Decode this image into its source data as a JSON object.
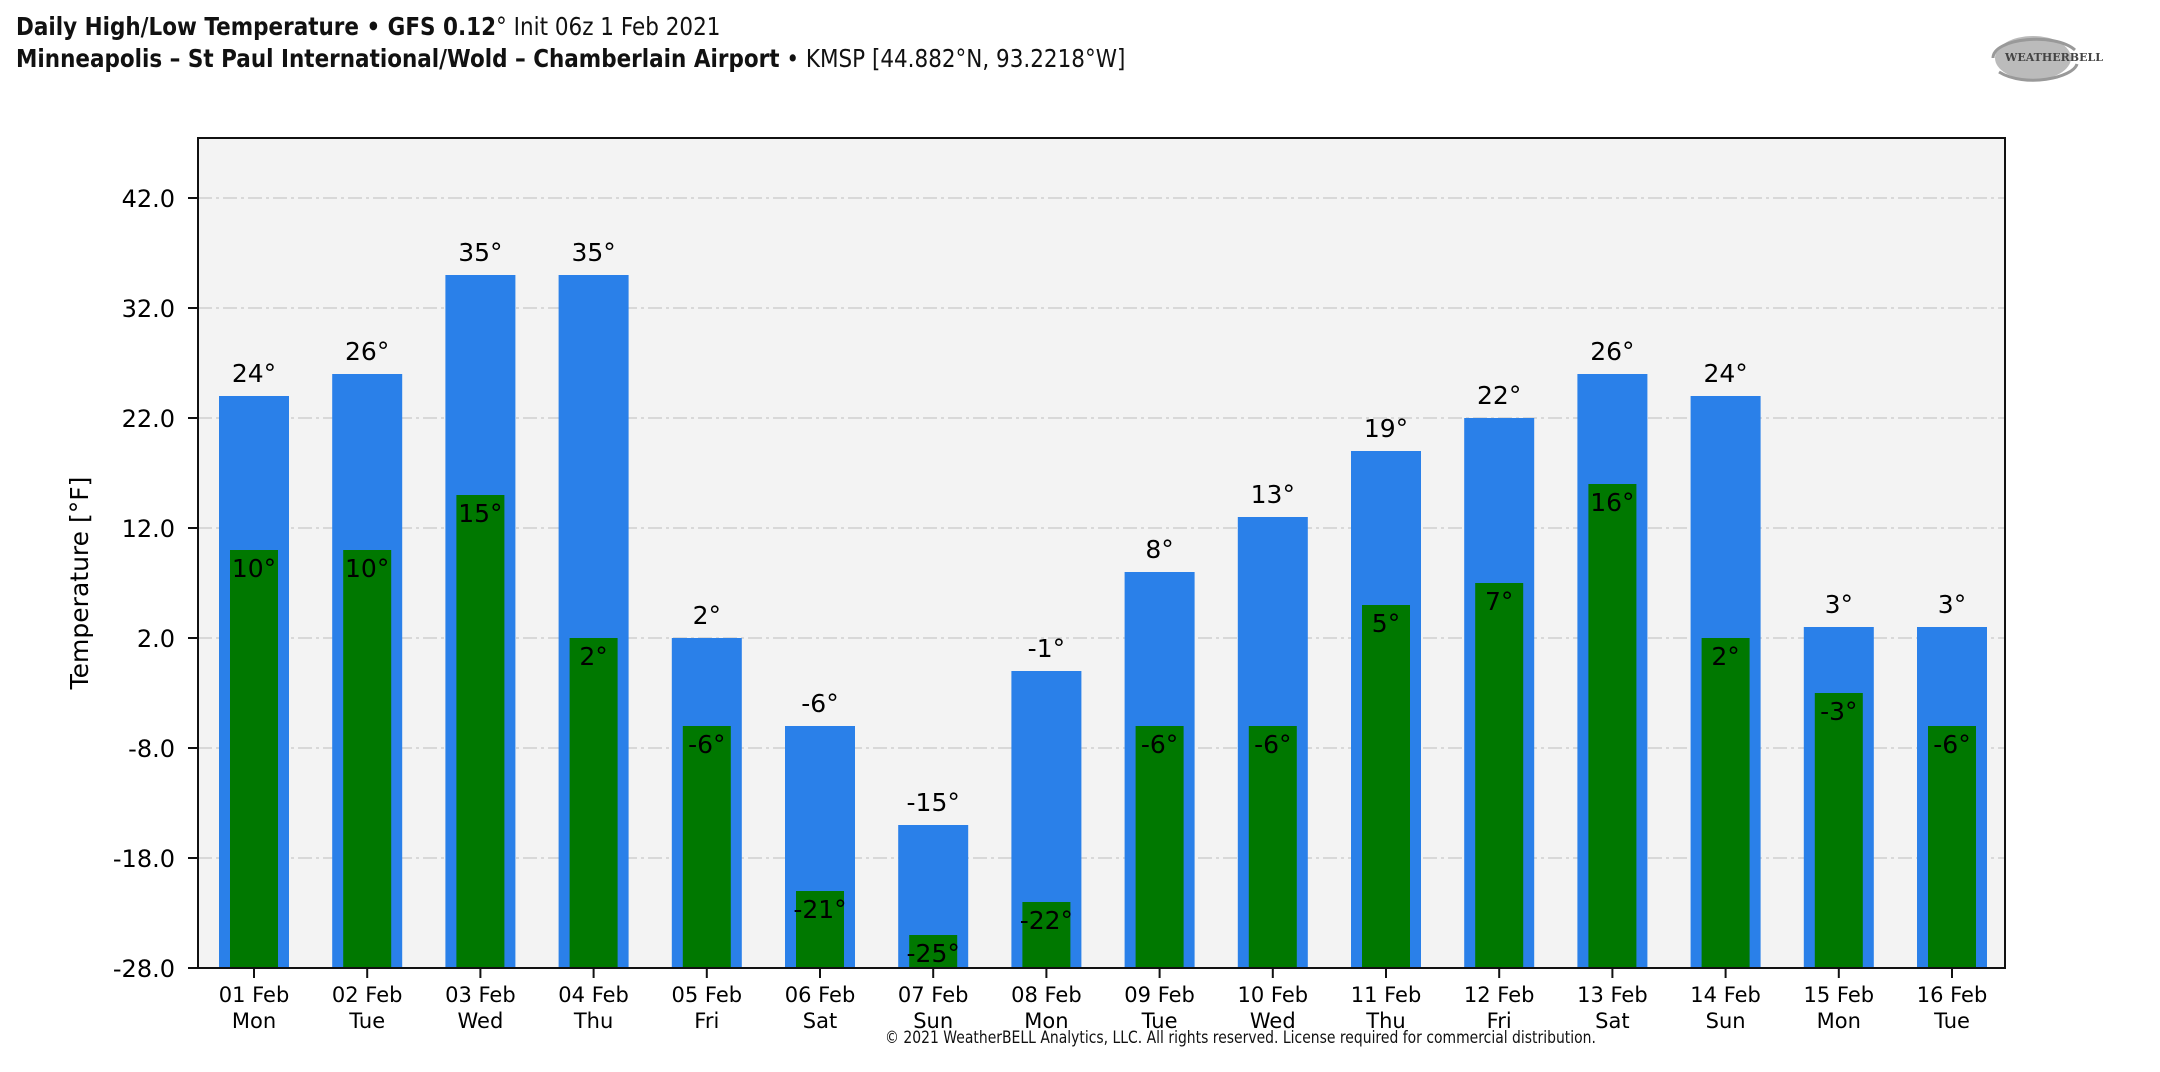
{
  "header": {
    "title_bold": "Daily High/Low Temperature • GFS 0.12",
    "title_deg": "°",
    "title_rest": " Init 06z 1 Feb 2021",
    "station_bold": "Minneapolis – St Paul International/Wold – Chamberlain Airport",
    "station_rest": " • KMSP [44.882°N, 93.2218°W]",
    "logo_text": "WeatherBELL"
  },
  "footer": {
    "copyright": "© 2021 WeatherBELL Analytics, LLC. All rights reserved. License required for commercial distribution."
  },
  "colors": {
    "high": "#2a80e9",
    "low": "#007800",
    "plot_bg": "#f3f3f3",
    "grid": "#d8d8d8"
  },
  "chart_data": {
    "type": "bar",
    "title": "Daily High/Low Temperature",
    "ylabel": "Temperature [°F]",
    "xlabel": "",
    "ylim": [
      -28,
      50
    ],
    "yticks": [
      "42.0",
      "32.0",
      "22.0",
      "12.0",
      "2.0",
      "-8.0",
      "-18.0",
      "-28.0"
    ],
    "ytick_values": [
      42,
      32,
      22,
      12,
      2,
      -8,
      -18,
      -28
    ],
    "grid": true,
    "categories": [
      {
        "date": "01 Feb",
        "day": "Mon"
      },
      {
        "date": "02 Feb",
        "day": "Tue"
      },
      {
        "date": "03 Feb",
        "day": "Wed"
      },
      {
        "date": "04 Feb",
        "day": "Thu"
      },
      {
        "date": "05 Feb",
        "day": "Fri"
      },
      {
        "date": "06 Feb",
        "day": "Sat"
      },
      {
        "date": "07 Feb",
        "day": "Sun"
      },
      {
        "date": "08 Feb",
        "day": "Mon"
      },
      {
        "date": "09 Feb",
        "day": "Tue"
      },
      {
        "date": "10 Feb",
        "day": "Wed"
      },
      {
        "date": "11 Feb",
        "day": "Thu"
      },
      {
        "date": "12 Feb",
        "day": "Fri"
      },
      {
        "date": "13 Feb",
        "day": "Sat"
      },
      {
        "date": "14 Feb",
        "day": "Sun"
      },
      {
        "date": "15 Feb",
        "day": "Mon"
      },
      {
        "date": "16 Feb",
        "day": "Tue"
      }
    ],
    "series": [
      {
        "name": "High",
        "values": [
          24,
          26,
          35,
          35,
          2,
          -6,
          -15,
          -1,
          8,
          13,
          19,
          22,
          26,
          24,
          3,
          3
        ]
      },
      {
        "name": "Low",
        "values": [
          10,
          10,
          15,
          2,
          -6,
          -21,
          -25,
          -22,
          -6,
          -6,
          5,
          7,
          16,
          2,
          -3,
          -6
        ]
      }
    ],
    "label_suffix": "°"
  }
}
